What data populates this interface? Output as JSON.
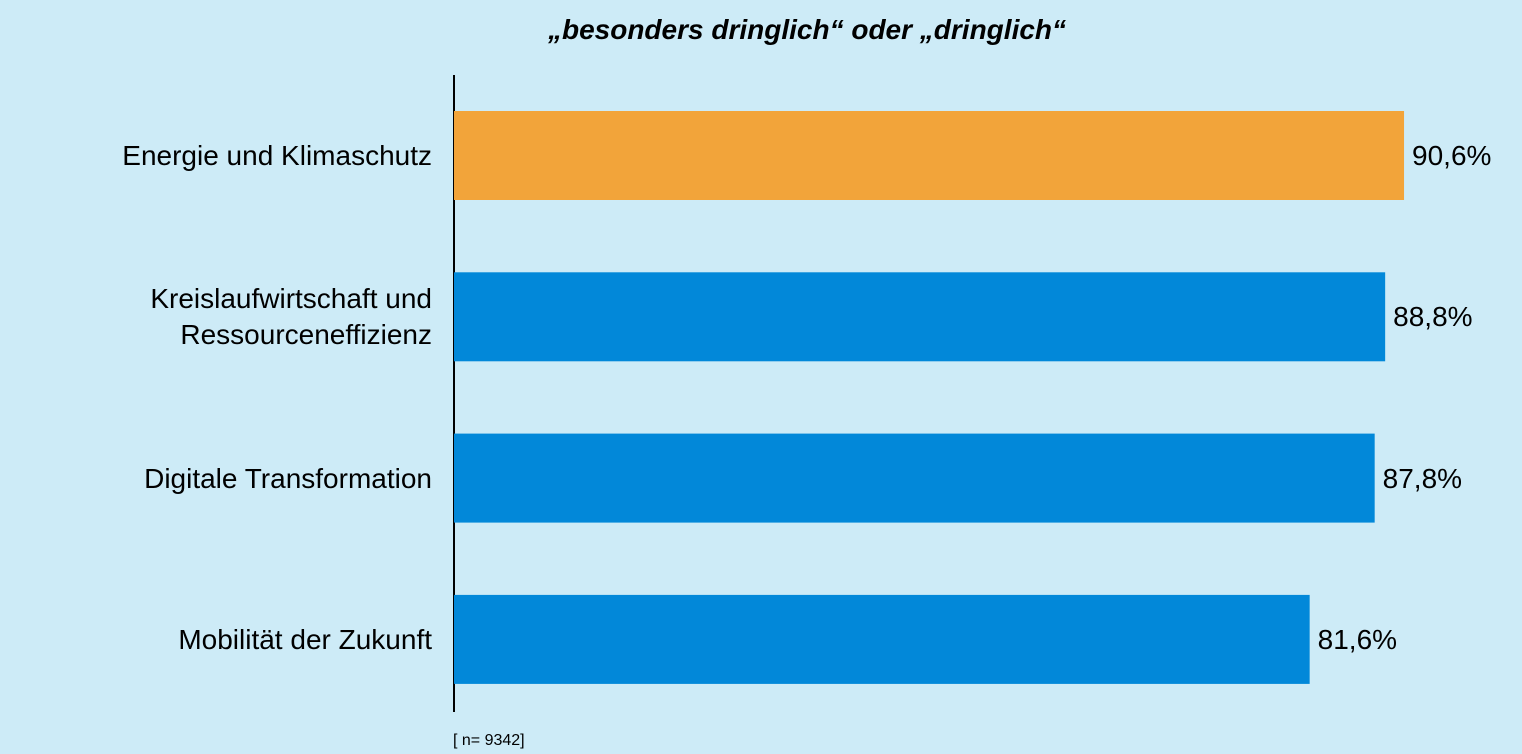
{
  "chart_data": {
    "type": "bar",
    "orientation": "horizontal",
    "title": "„besonders dringlich“ oder „dringlich“",
    "categories": [
      "Energie und Klimaschutz",
      "Kreislaufwirtschaft und Ressourceneffizienz",
      "Digitale Transformation",
      "Mobilität der Zukunft"
    ],
    "values": [
      90.6,
      88.8,
      87.8,
      81.6
    ],
    "value_labels": [
      "90,6%",
      "88,8%",
      "87,8%",
      "81,6%"
    ],
    "colors": [
      "#f2a43a",
      "#0288d9",
      "#0288d9",
      "#0288d9"
    ],
    "note": "[ n= 9342]"
  }
}
